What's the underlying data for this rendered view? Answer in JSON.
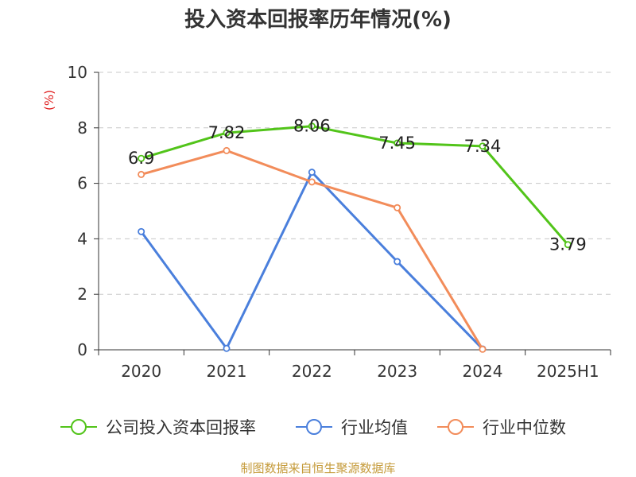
{
  "chart_data": {
    "type": "line",
    "title": "投入资本回报率历年情况(%)",
    "ylabel": "(%)",
    "xlabel": "",
    "categories": [
      "2020",
      "2021",
      "2022",
      "2023",
      "2024",
      "2025H1"
    ],
    "ylim": [
      0,
      10
    ],
    "yticks": [
      0,
      2,
      4,
      6,
      8,
      10
    ],
    "grid": true,
    "legend_position": "bottom",
    "series": [
      {
        "name": "公司投入资本回报率",
        "color": "#52c41a",
        "values": [
          6.9,
          7.82,
          8.06,
          7.45,
          7.34,
          3.79
        ],
        "labels": [
          "6.9",
          "7.82",
          "8.06",
          "7.45",
          "7.34",
          "3.79"
        ]
      },
      {
        "name": "行业均值",
        "color": "#4a7fdc",
        "values": [
          4.26,
          0.05,
          6.4,
          3.18,
          0.03,
          null
        ]
      },
      {
        "name": "行业中位数",
        "color": "#f28c5a",
        "values": [
          6.32,
          7.18,
          6.05,
          5.12,
          0.02,
          null
        ]
      }
    ]
  },
  "footer": {
    "source": "制图数据来自恒生聚源数据库"
  }
}
